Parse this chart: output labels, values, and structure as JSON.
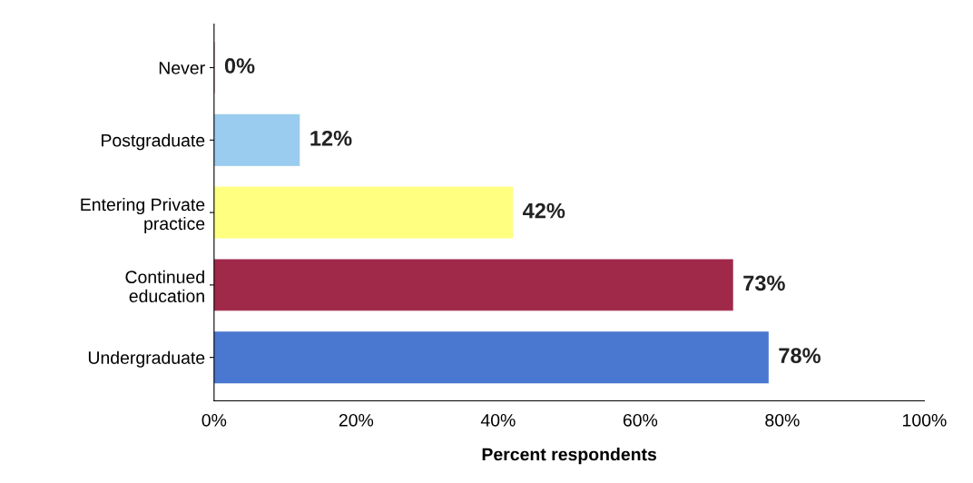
{
  "chart_data": {
    "type": "bar",
    "orientation": "horizontal",
    "categories": [
      "Never",
      "Postgraduate",
      "Entering Private\npractice",
      "Continued\neducation",
      "Undergraduate"
    ],
    "values": [
      0,
      12,
      42,
      73,
      78
    ],
    "colors": [
      "#7b3060",
      "#99ccee",
      "#ffff80",
      "#a0294a",
      "#4a78d0"
    ],
    "value_labels": [
      "0%",
      "12%",
      "42%",
      "73%",
      "78%"
    ],
    "xlabel": "Percent respondents",
    "xlim": [
      0,
      100
    ],
    "xticks": [
      {
        "value": 0,
        "label": "0%"
      },
      {
        "value": 20,
        "label": "20%"
      },
      {
        "value": 40,
        "label": "40%"
      },
      {
        "value": 60,
        "label": "60%"
      },
      {
        "value": 80,
        "label": "80%"
      },
      {
        "value": 100,
        "label": "100%"
      }
    ],
    "grid": false,
    "legend": false
  }
}
